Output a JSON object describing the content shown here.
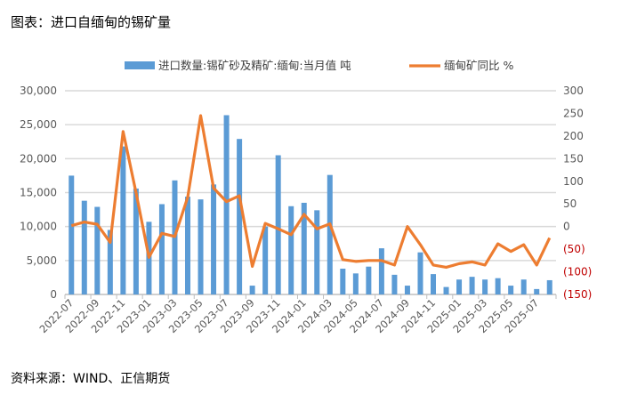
{
  "title": "图表：进口自缅甸的锡矿量",
  "source": "资料来源：WIND、正信期货",
  "chart_data": {
    "type": "bar+line",
    "categories": [
      "2022-07",
      "2022-08",
      "2022-09",
      "2022-10",
      "2022-11",
      "2022-12",
      "2023-01",
      "2023-02",
      "2023-03",
      "2023-04",
      "2023-05",
      "2023-06",
      "2023-07",
      "2023-08",
      "2023-09",
      "2023-10",
      "2023-11",
      "2023-12",
      "2024-01",
      "2024-02",
      "2024-03",
      "2024-04",
      "2024-05",
      "2024-06",
      "2024-07",
      "2024-08",
      "2024-09",
      "2024-10",
      "2024-11",
      "2024-12",
      "2025-01",
      "2025-02",
      "2025-03",
      "2025-04",
      "2025-05",
      "2025-06",
      "2025-07",
      "2025-08"
    ],
    "series": [
      {
        "name": "进口数量:锡矿砂及精矿:缅甸:当月值 吨",
        "type": "bar",
        "axis": "left",
        "color": "#5b9bd5",
        "values": [
          17500,
          13800,
          12900,
          9500,
          21800,
          15600,
          10700,
          13300,
          16800,
          14400,
          14000,
          16200,
          26400,
          22900,
          1300,
          10000,
          20500,
          13000,
          13500,
          12400,
          17600,
          3800,
          3100,
          4100,
          6800,
          2900,
          1300,
          6200,
          3000,
          1100,
          2200,
          2600,
          2200,
          2400,
          1300,
          2200,
          800,
          2100
        ]
      },
      {
        "name": "缅甸矿同比 %",
        "type": "line",
        "axis": "right",
        "color": "#ed7d31",
        "values": [
          2,
          10,
          5,
          -35,
          210,
          75,
          -68,
          -15,
          -22,
          65,
          245,
          85,
          55,
          68,
          -88,
          7,
          -5,
          -18,
          27,
          -5,
          6,
          -73,
          -77,
          -75,
          -75,
          -85,
          0,
          -40,
          -85,
          -90,
          -82,
          -78,
          -85,
          -38,
          -55,
          -40,
          -85,
          -25
        ]
      }
    ],
    "left_axis": {
      "ylim": [
        0,
        30000
      ],
      "ticks": [
        "0",
        "5,000",
        "10,000",
        "15,000",
        "20,000",
        "25,000",
        "30,000"
      ]
    },
    "right_axis": {
      "ylim": [
        -150,
        300
      ],
      "ticks": [
        "(150)",
        "(100)",
        "(50)",
        "0",
        "50",
        "100",
        "150",
        "200",
        "250",
        "300"
      ],
      "negative_color": "#c00000"
    },
    "x_tick_labels": [
      "2022-07",
      "2022-09",
      "2022-11",
      "2023-01",
      "2023-03",
      "2023-05",
      "2023-07",
      "2023-09",
      "2023-11",
      "2024-01",
      "2024-03",
      "2024-05",
      "2024-07",
      "2024-09",
      "2024-11",
      "2025-01",
      "2025-03",
      "2025-05",
      "2025-07"
    ],
    "legend_position": "top",
    "grid": true
  }
}
